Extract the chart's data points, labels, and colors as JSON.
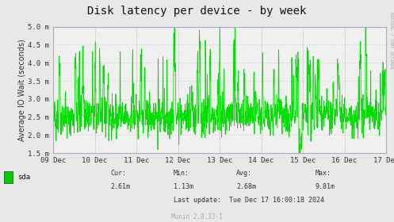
{
  "title": "Disk latency per device - by week",
  "ylabel": "Average IO Wait (seconds)",
  "background_color": "#e8e8e8",
  "plot_bg_color": "#f0f0f0",
  "grid_color_h": "#cccccc",
  "grid_color_v": "#ddaaaa",
  "line_color": "#00dd00",
  "ylim": [
    0.0015,
    0.005
  ],
  "yticks": [
    0.0015,
    0.002,
    0.0025,
    0.003,
    0.0035,
    0.004,
    0.0045,
    0.005
  ],
  "ytick_labels": [
    "1.5 m",
    "2.0 m",
    "2.5 m",
    "3.0 m",
    "3.5 m",
    "4.0 m",
    "4.5 m",
    "5.0 m"
  ],
  "xtick_labels": [
    "09 Dec",
    "10 Dec",
    "11 Dec",
    "12 Dec",
    "13 Dec",
    "14 Dec",
    "15 Dec",
    "16 Dec",
    "17 Dec"
  ],
  "vline_color": "#cc9999",
  "legend_label": "sda",
  "legend_color": "#00cc00",
  "cur_val": "2.61m",
  "min_val": "1.13m",
  "avg_val": "2.68m",
  "max_val": "9.81m",
  "last_update": "Tue Dec 17 16:00:18 2024",
  "munin_text": "Munin 2.0.33-1",
  "rrdtool_text": "RRDTOOL / TOBI OETIKER",
  "title_fontsize": 10,
  "axis_fontsize": 7,
  "tick_fontsize": 6.5,
  "footer_fontsize": 6,
  "seed": 42
}
